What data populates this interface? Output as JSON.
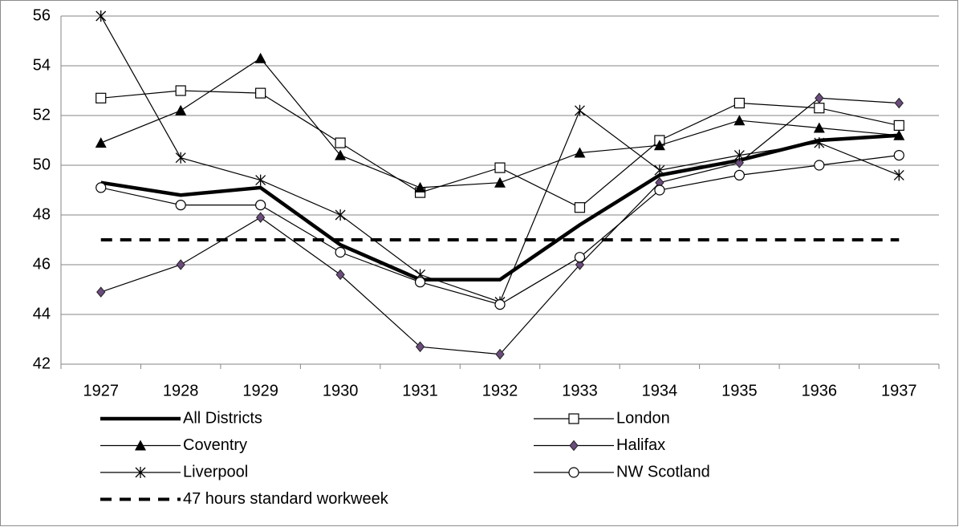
{
  "chart_data": {
    "type": "line",
    "categories": [
      "1927",
      "1928",
      "1929",
      "1930",
      "1931",
      "1932",
      "1933",
      "1934",
      "1935",
      "1936",
      "1937"
    ],
    "ylim": [
      42,
      56
    ],
    "yticks": [
      42,
      44,
      46,
      48,
      50,
      52,
      54,
      56
    ],
    "grid": true,
    "legend": "bottom",
    "series": [
      {
        "name": "All Districts",
        "color": "#000000",
        "marker": "none",
        "line_width": 4.5,
        "dashed": false,
        "values": [
          49.3,
          48.8,
          49.1,
          46.8,
          45.4,
          45.4,
          47.6,
          49.6,
          50.2,
          51.0,
          51.2
        ]
      },
      {
        "name": "London",
        "color": "#000000",
        "marker": "square",
        "line_width": 1.2,
        "dashed": false,
        "values": [
          52.7,
          53.0,
          52.9,
          50.9,
          48.9,
          49.9,
          48.3,
          51.0,
          52.5,
          52.3,
          51.6
        ]
      },
      {
        "name": "Coventry",
        "color": "#000000",
        "marker": "triangle",
        "line_width": 1.2,
        "dashed": false,
        "values": [
          50.9,
          52.2,
          54.3,
          50.4,
          49.1,
          49.3,
          50.5,
          50.8,
          51.8,
          51.5,
          51.2
        ]
      },
      {
        "name": "Halifax",
        "color": "#000000",
        "marker": "diamond",
        "line_width": 1.2,
        "dashed": false,
        "values": [
          44.9,
          46.0,
          47.9,
          45.6,
          42.7,
          42.4,
          46.0,
          49.3,
          50.1,
          52.7,
          52.5
        ]
      },
      {
        "name": "Liverpool",
        "color": "#000000",
        "marker": "star",
        "line_width": 1.2,
        "dashed": false,
        "values": [
          56.0,
          50.3,
          49.4,
          48.0,
          45.6,
          44.5,
          52.2,
          49.8,
          50.4,
          50.9,
          49.6
        ]
      },
      {
        "name": "NW Scotland",
        "color": "#000000",
        "marker": "circle",
        "line_width": 1.2,
        "dashed": false,
        "values": [
          49.1,
          48.4,
          48.4,
          46.5,
          45.3,
          44.4,
          46.3,
          49.0,
          49.6,
          50.0,
          50.4
        ]
      },
      {
        "name": "47 hours standard workweek",
        "color": "#000000",
        "marker": "none",
        "line_width": 4,
        "dashed": true,
        "values": [
          47,
          47,
          47,
          47,
          47,
          47,
          47,
          47,
          47,
          47,
          47
        ]
      }
    ]
  }
}
